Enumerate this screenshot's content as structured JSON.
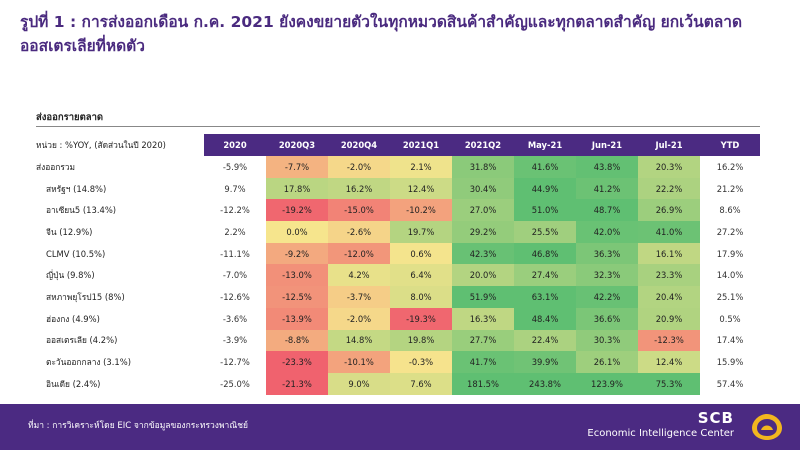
{
  "title": "รูปที่ 1 : การส่งออกเดือน ก.ค. 2021 ยังคงขยายตัวในทุกหมวดสินค้าสำคัญและทุกตลาดสำคัญ ยกเว้นตลาดออสเตรเลียที่หดตัว",
  "table_title": "ส่งออกรายตลาด",
  "unit_label": "หน่วย : %YOY, (สัดส่วนในปี 2020)",
  "footer": {
    "source": "ที่มา : การวิเคราะห์โดย EIC จากข้อมูลของกระทรวงพาณิชย์",
    "brand": "SCB",
    "brand_sub": "Economic Intelligence Center",
    "logo_icon": "scb-logo-icon"
  },
  "colors": {
    "header_bg": "#4b2a82",
    "low": "#f0626e",
    "mid": "#f6e58d",
    "high": "#5fbf72"
  },
  "chart_data": {
    "type": "table",
    "title": "ส่งออกรายตลาด",
    "columns": [
      "2020",
      "2020Q3",
      "2020Q4",
      "2021Q1",
      "2021Q2",
      "May-21",
      "Jun-21",
      "Jul-21",
      "YTD"
    ],
    "heatmap_columns": [
      "2020Q3",
      "2020Q4",
      "2021Q1",
      "2021Q2",
      "May-21",
      "Jun-21",
      "Jul-21"
    ],
    "rows": [
      {
        "label": "ส่งออกรวม",
        "values": [
          -5.9,
          -7.7,
          -2.0,
          2.1,
          31.8,
          41.6,
          43.8,
          20.3,
          16.2
        ]
      },
      {
        "label": "สหรัฐฯ (14.8%)",
        "values": [
          9.7,
          17.8,
          16.2,
          12.4,
          30.4,
          44.9,
          41.2,
          22.2,
          21.2
        ]
      },
      {
        "label": "อาเซียน5 (13.4%)",
        "values": [
          -12.2,
          -19.2,
          -15.0,
          -10.2,
          27.0,
          51.0,
          48.7,
          26.9,
          8.6
        ]
      },
      {
        "label": "จีน (12.9%)",
        "values": [
          2.2,
          0.0,
          -2.6,
          19.7,
          29.2,
          25.5,
          42.0,
          41.0,
          27.2
        ]
      },
      {
        "label": "CLMV (10.5%)",
        "values": [
          -11.1,
          -9.2,
          -12.0,
          0.6,
          42.3,
          46.8,
          36.3,
          16.1,
          17.9
        ]
      },
      {
        "label": "ญี่ปุ่น (9.8%)",
        "values": [
          -7.0,
          -13.0,
          4.2,
          6.4,
          20.0,
          27.4,
          32.3,
          23.3,
          14.0
        ]
      },
      {
        "label": "สหภาพยุโรป15 (8%)",
        "values": [
          -12.6,
          -12.5,
          -3.7,
          8.0,
          51.9,
          63.1,
          42.2,
          20.4,
          25.1
        ]
      },
      {
        "label": "ฮ่องกง (4.9%)",
        "values": [
          -3.6,
          -13.9,
          -2.0,
          -19.3,
          16.3,
          48.4,
          36.6,
          20.9,
          0.5
        ]
      },
      {
        "label": "ออสเตรเลีย (4.2%)",
        "values": [
          -3.9,
          -8.8,
          14.8,
          19.8,
          27.7,
          22.4,
          30.3,
          -12.3,
          17.4
        ]
      },
      {
        "label": "ตะวันออกกลาง (3.1%)",
        "values": [
          -12.7,
          -23.3,
          -10.1,
          -0.3,
          41.7,
          39.9,
          26.1,
          12.4,
          15.9
        ]
      },
      {
        "label": "อินเดีย (2.4%)",
        "values": [
          -25.0,
          -21.3,
          9.0,
          7.6,
          181.5,
          243.8,
          123.9,
          75.3,
          57.4
        ]
      }
    ]
  }
}
